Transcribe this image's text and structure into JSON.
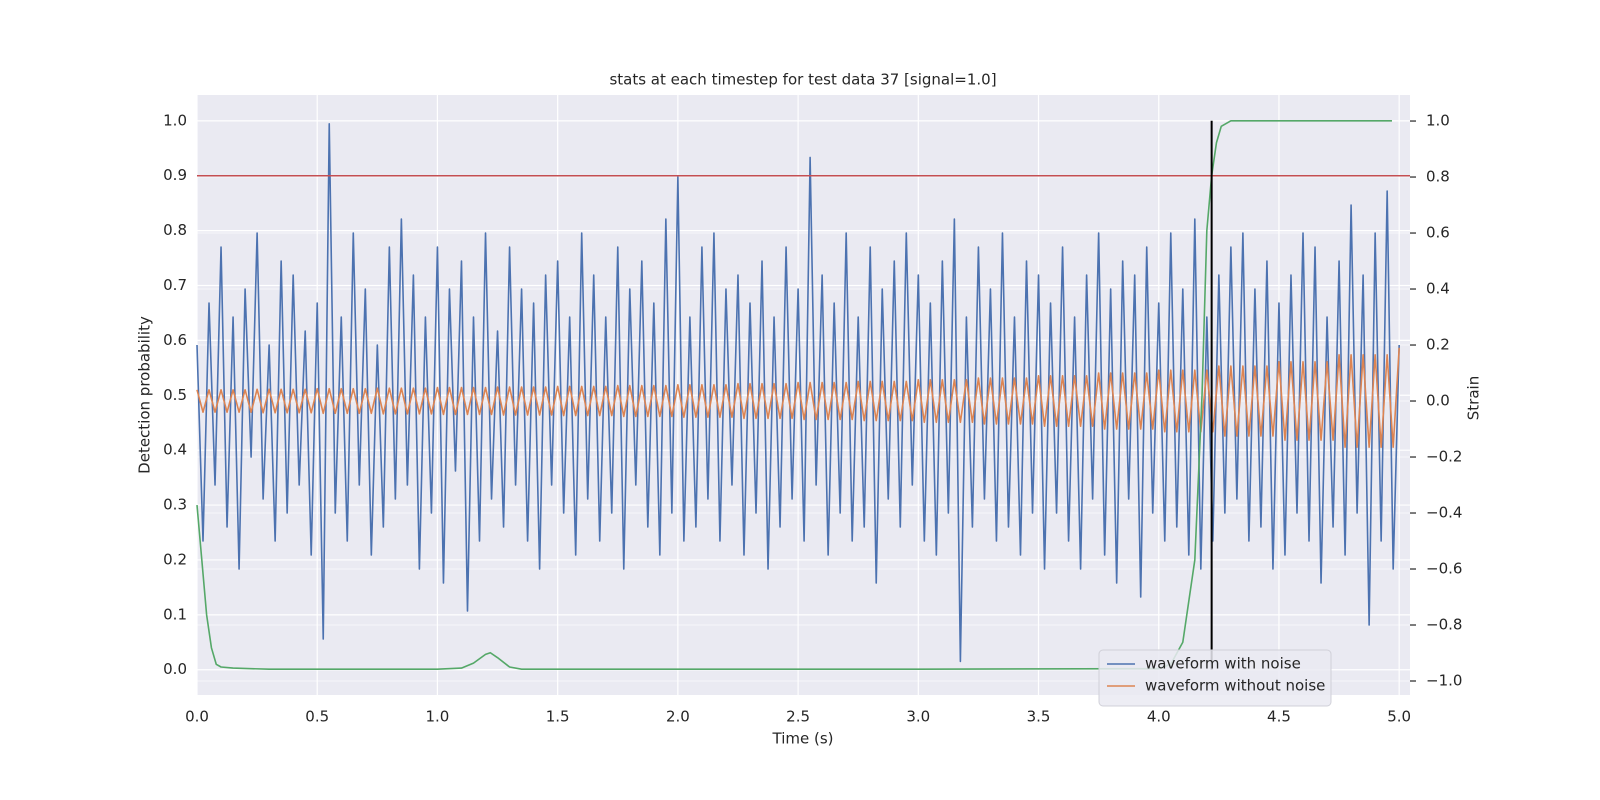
{
  "chart_data": {
    "type": "line",
    "title": "stats at each timestep for test data 37 [signal=1.0]",
    "xlabel": "Time (s)",
    "ylabel": "Detection probability",
    "y2label": "Strain",
    "xlim": [
      0,
      5.045
    ],
    "ylim": [
      -0.046,
      1.047
    ],
    "y2lim": [
      -1.05,
      1.093
    ],
    "xticks": [
      {
        "value": 0,
        "label": "0.0"
      },
      {
        "value": 0.5,
        "label": "0.5"
      },
      {
        "value": 1,
        "label": "1.0"
      },
      {
        "value": 1.5,
        "label": "1.5"
      },
      {
        "value": 2,
        "label": "2.0"
      },
      {
        "value": 2.5,
        "label": "2.5"
      },
      {
        "value": 3,
        "label": "3.0"
      },
      {
        "value": 3.5,
        "label": "3.5"
      },
      {
        "value": 4,
        "label": "4.0"
      },
      {
        "value": 4.5,
        "label": "4.5"
      },
      {
        "value": 5,
        "label": "5.0"
      }
    ],
    "yticks": [
      {
        "value": 0,
        "label": "0.0"
      },
      {
        "value": 0.1,
        "label": "0.1"
      },
      {
        "value": 0.2,
        "label": "0.2"
      },
      {
        "value": 0.3,
        "label": "0.3"
      },
      {
        "value": 0.4,
        "label": "0.4"
      },
      {
        "value": 0.5,
        "label": "0.5"
      },
      {
        "value": 0.6,
        "label": "0.6"
      },
      {
        "value": 0.7,
        "label": "0.7"
      },
      {
        "value": 0.8,
        "label": "0.8"
      },
      {
        "value": 0.9,
        "label": "0.9"
      },
      {
        "value": 1,
        "label": "1.0"
      }
    ],
    "y2ticks": [
      {
        "value": -1,
        "label": "−1.0"
      },
      {
        "value": -0.8,
        "label": "−0.8"
      },
      {
        "value": -0.6,
        "label": "−0.6"
      },
      {
        "value": -0.4,
        "label": "−0.4"
      },
      {
        "value": -0.2,
        "label": "−0.2"
      },
      {
        "value": 0,
        "label": "0.0"
      },
      {
        "value": 0.2,
        "label": "0.2"
      },
      {
        "value": 0.4,
        "label": "0.4"
      },
      {
        "value": 0.6,
        "label": "0.6"
      },
      {
        "value": 0.8,
        "label": "0.8"
      },
      {
        "value": 1,
        "label": "1.0"
      }
    ],
    "grid": true,
    "legend": "lower right",
    "x": [
      0,
      0.025,
      0.05,
      0.075,
      0.1,
      0.125,
      0.15,
      0.175,
      0.2,
      0.225,
      0.25,
      0.275,
      0.3,
      0.325,
      0.35,
      0.375,
      0.4,
      0.425,
      0.45,
      0.475,
      0.5,
      0.525,
      0.55,
      0.575,
      0.6,
      0.625,
      0.65,
      0.675,
      0.7,
      0.725,
      0.75,
      0.775,
      0.8,
      0.825,
      0.85,
      0.875,
      0.9,
      0.925,
      0.95,
      0.975,
      1,
      1.025,
      1.05,
      1.075,
      1.1,
      1.125,
      1.15,
      1.175,
      1.2,
      1.225,
      1.25,
      1.275,
      1.3,
      1.325,
      1.35,
      1.375,
      1.4,
      1.425,
      1.45,
      1.475,
      1.5,
      1.525,
      1.55,
      1.575,
      1.6,
      1.625,
      1.65,
      1.675,
      1.7,
      1.725,
      1.75,
      1.775,
      1.8,
      1.825,
      1.85,
      1.875,
      1.9,
      1.925,
      1.95,
      1.975,
      2,
      2.025,
      2.05,
      2.075,
      2.1,
      2.125,
      2.15,
      2.175,
      2.2,
      2.225,
      2.25,
      2.275,
      2.3,
      2.325,
      2.35,
      2.375,
      2.4,
      2.425,
      2.45,
      2.475,
      2.5,
      2.525,
      2.55,
      2.575,
      2.6,
      2.625,
      2.65,
      2.675,
      2.7,
      2.725,
      2.75,
      2.775,
      2.8,
      2.825,
      2.85,
      2.875,
      2.9,
      2.925,
      2.95,
      2.975,
      3,
      3.025,
      3.05,
      3.075,
      3.1,
      3.125,
      3.15,
      3.175,
      3.2,
      3.225,
      3.25,
      3.275,
      3.3,
      3.325,
      3.35,
      3.375,
      3.4,
      3.425,
      3.45,
      3.475,
      3.5,
      3.525,
      3.55,
      3.575,
      3.6,
      3.625,
      3.65,
      3.675,
      3.7,
      3.725,
      3.75,
      3.775,
      3.8,
      3.825,
      3.85,
      3.875,
      3.9,
      3.925,
      3.95,
      3.975,
      4,
      4.025,
      4.05,
      4.075,
      4.1,
      4.125,
      4.15,
      4.175,
      4.2,
      4.225,
      4.25,
      4.275,
      4.3,
      4.325,
      4.35,
      4.375,
      4.4,
      4.425,
      4.45,
      4.475,
      4.5,
      4.525,
      4.55,
      4.575,
      4.6,
      4.625,
      4.65,
      4.675,
      4.7,
      4.725,
      4.75,
      4.775,
      4.8,
      4.825,
      4.85,
      4.875,
      4.9,
      4.925,
      4.95,
      4.975,
      5
    ],
    "series": [
      {
        "name": "waveform with noise",
        "color": "#4c72b0",
        "axis": "y2",
        "values": [
          0.2,
          -0.5,
          0.35,
          -0.3,
          0.55,
          -0.45,
          0.3,
          -0.6,
          0.4,
          -0.2,
          0.6,
          -0.35,
          0.2,
          -0.5,
          0.5,
          -0.4,
          0.45,
          -0.3,
          0.25,
          -0.55,
          0.35,
          -0.85,
          0.99,
          -0.4,
          0.3,
          -0.5,
          0.6,
          -0.3,
          0.4,
          -0.55,
          0.2,
          -0.45,
          0.55,
          -0.35,
          0.65,
          -0.3,
          0.45,
          -0.6,
          0.3,
          -0.4,
          0.55,
          -0.65,
          0.4,
          -0.25,
          0.5,
          -0.75,
          0.3,
          -0.5,
          0.6,
          -0.35,
          0.25,
          -0.45,
          0.55,
          -0.3,
          0.4,
          -0.5,
          0.35,
          -0.6,
          0.45,
          -0.3,
          0.5,
          -0.4,
          0.3,
          -0.55,
          0.6,
          -0.35,
          0.45,
          -0.5,
          0.3,
          -0.4,
          0.55,
          -0.6,
          0.4,
          -0.3,
          0.5,
          -0.45,
          0.35,
          -0.55,
          0.65,
          -0.4,
          0.8,
          -0.5,
          0.3,
          -0.45,
          0.55,
          -0.35,
          0.6,
          -0.5,
          0.4,
          -0.3,
          0.45,
          -0.55,
          0.35,
          -0.4,
          0.5,
          -0.6,
          0.3,
          -0.45,
          0.55,
          -0.35,
          0.4,
          -0.5,
          0.87,
          -0.3,
          0.45,
          -0.55,
          0.35,
          -0.4,
          0.6,
          -0.5,
          0.3,
          -0.45,
          0.55,
          -0.65,
          0.4,
          -0.35,
          0.5,
          -0.45,
          0.6,
          -0.3,
          0.45,
          -0.5,
          0.35,
          -0.55,
          0.5,
          -0.4,
          0.65,
          -0.93,
          0.3,
          -0.45,
          0.55,
          -0.35,
          0.4,
          -0.5,
          0.6,
          -0.45,
          0.3,
          -0.55,
          0.5,
          -0.4,
          0.45,
          -0.6,
          0.35,
          -0.4,
          0.55,
          -0.5,
          0.3,
          -0.6,
          0.45,
          -0.35,
          0.6,
          -0.55,
          0.4,
          -0.65,
          0.5,
          -0.35,
          0.45,
          -0.7,
          0.55,
          -0.4,
          0.35,
          -0.5,
          0.6,
          -0.45,
          0.4,
          -0.55,
          0.65,
          -0.6,
          0.3,
          -0.5,
          0.45,
          -0.4,
          0.55,
          -0.35,
          0.6,
          -0.5,
          0.4,
          -0.45,
          0.5,
          -0.6,
          0.35,
          -0.55,
          0.45,
          -0.4,
          0.6,
          -0.5,
          0.55,
          -0.65,
          0.3,
          -0.45,
          0.5,
          -0.55,
          0.7,
          -0.4,
          0.45,
          -0.8,
          0.6,
          -0.5,
          0.75,
          -0.6,
          0.2
        ]
      },
      {
        "name": "waveform without noise",
        "color": "#dd8452",
        "axis": "y2",
        "values": [
          0.04,
          -0.04,
          0.04,
          -0.04,
          0.04,
          -0.04,
          0.04,
          -0.04,
          0.04,
          -0.04,
          0.042,
          -0.042,
          0.042,
          -0.042,
          0.042,
          -0.042,
          0.042,
          -0.042,
          0.042,
          -0.042,
          0.044,
          -0.044,
          0.044,
          -0.044,
          0.044,
          -0.044,
          0.044,
          -0.044,
          0.044,
          -0.044,
          0.046,
          -0.046,
          0.046,
          -0.046,
          0.046,
          -0.046,
          0.046,
          -0.046,
          0.046,
          -0.046,
          0.048,
          -0.048,
          0.048,
          -0.048,
          0.048,
          -0.048,
          0.048,
          -0.048,
          0.048,
          -0.048,
          0.05,
          -0.05,
          0.05,
          -0.05,
          0.05,
          -0.05,
          0.05,
          -0.05,
          0.05,
          -0.05,
          0.052,
          -0.052,
          0.052,
          -0.052,
          0.052,
          -0.052,
          0.052,
          -0.052,
          0.052,
          -0.052,
          0.055,
          -0.055,
          0.055,
          -0.055,
          0.055,
          -0.055,
          0.055,
          -0.055,
          0.055,
          -0.055,
          0.058,
          -0.058,
          0.058,
          -0.058,
          0.058,
          -0.058,
          0.058,
          -0.058,
          0.058,
          -0.058,
          0.062,
          -0.062,
          0.062,
          -0.062,
          0.062,
          -0.062,
          0.062,
          -0.062,
          0.062,
          -0.062,
          0.066,
          -0.066,
          0.066,
          -0.066,
          0.066,
          -0.066,
          0.066,
          -0.066,
          0.066,
          -0.066,
          0.07,
          -0.07,
          0.07,
          -0.07,
          0.07,
          -0.07,
          0.07,
          -0.07,
          0.07,
          -0.07,
          0.076,
          -0.076,
          0.076,
          -0.076,
          0.076,
          -0.076,
          0.076,
          -0.076,
          0.076,
          -0.076,
          0.082,
          -0.082,
          0.082,
          -0.082,
          0.082,
          -0.082,
          0.082,
          -0.082,
          0.082,
          -0.082,
          0.09,
          -0.09,
          0.09,
          -0.09,
          0.09,
          -0.09,
          0.09,
          -0.09,
          0.09,
          -0.09,
          0.1,
          -0.1,
          0.1,
          -0.1,
          0.1,
          -0.1,
          0.1,
          -0.1,
          0.1,
          -0.1,
          0.11,
          -0.11,
          0.11,
          -0.11,
          0.11,
          -0.11,
          0.11,
          -0.11,
          0.11,
          -0.11,
          0.125,
          -0.125,
          0.125,
          -0.125,
          0.125,
          -0.125,
          0.125,
          -0.125,
          0.125,
          -0.125,
          0.14,
          -0.14,
          0.14,
          -0.14,
          0.14,
          -0.14,
          0.14,
          -0.14,
          0.14,
          -0.14,
          0.165,
          -0.165,
          0.165,
          -0.165,
          0.165,
          -0.165,
          0.165,
          -0.165,
          0.165,
          -0.165,
          0.19
        ]
      },
      {
        "color": "#55a868",
        "x": [
          0,
          0.02,
          0.04,
          0.06,
          0.08,
          0.1,
          0.15,
          0.3,
          1.0,
          1.1,
          1.15,
          1.2,
          1.22,
          1.25,
          1.3,
          1.35,
          2,
          3,
          4,
          4.05,
          4.1,
          4.15,
          4.18,
          4.2,
          4.22,
          4.24,
          4.26,
          4.3,
          4.4,
          4.97
        ],
        "values": [
          0.3,
          0.2,
          0.1,
          0.04,
          0.01,
          0.005,
          0.003,
          0.001,
          0.001,
          0.003,
          0.012,
          0.028,
          0.031,
          0.022,
          0.005,
          0.001,
          0.001,
          0.001,
          0.002,
          0.01,
          0.05,
          0.2,
          0.5,
          0.8,
          0.9,
          0.96,
          0.99,
          1.0,
          1.0,
          1.0
        ]
      }
    ],
    "hlines": [
      {
        "y": 0.9,
        "color": "#c44e52"
      }
    ],
    "vlines": [
      {
        "x": 4.22,
        "ymin": 0,
        "ymax": 1,
        "color": "#000000"
      }
    ]
  }
}
